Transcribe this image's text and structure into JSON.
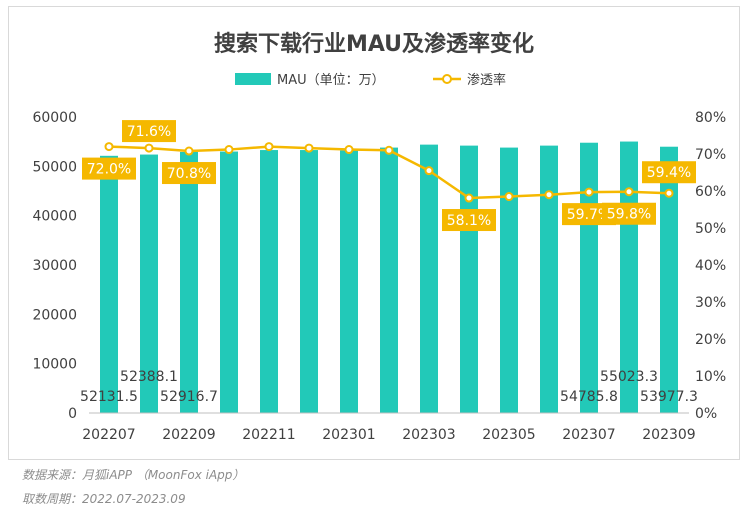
{
  "chart_data": {
    "type": "bar+line",
    "title": "搜索下载行业MAU及渗透率变化",
    "legend": {
      "placement": "top",
      "items": [
        {
          "label": "MAU（单位：万）",
          "color": "#22c9b8"
        },
        {
          "label": "渗透率",
          "color": "#f5b800"
        }
      ]
    },
    "categories": [
      "202207",
      "202208",
      "202209",
      "202210",
      "202211",
      "202212",
      "202301",
      "202302",
      "202303",
      "202304",
      "202305",
      "202306",
      "202307",
      "202308",
      "202309"
    ],
    "x_tick_labels": [
      "202207",
      "202209",
      "202211",
      "202301",
      "202303",
      "202305",
      "202307",
      "202309"
    ],
    "series": [
      {
        "name": "MAU（单位：万）",
        "type": "bar",
        "axis": "left",
        "color": "#22c9b8",
        "values": [
          52131.5,
          52388.1,
          52916.7,
          53000,
          53300,
          53300,
          53200,
          53800,
          54400,
          54200,
          53800,
          54200,
          54785.8,
          55023.3,
          53977.3
        ],
        "data_labels": [
          {
            "index": 0,
            "text": "52131.5"
          },
          {
            "index": 1,
            "text": "52388.1"
          },
          {
            "index": 2,
            "text": "52916.7"
          },
          {
            "index": 12,
            "text": "54785.8"
          },
          {
            "index": 13,
            "text": "55023.3"
          },
          {
            "index": 14,
            "text": "53977.3"
          }
        ]
      },
      {
        "name": "渗透率",
        "type": "line",
        "axis": "right",
        "color": "#f5b800",
        "values": [
          72.0,
          71.6,
          70.8,
          71.2,
          72.0,
          71.6,
          71.2,
          71.0,
          65.5,
          58.1,
          58.5,
          59.0,
          59.7,
          59.8,
          59.4
        ],
        "data_labels": [
          {
            "index": 0,
            "text": "72.0%"
          },
          {
            "index": 1,
            "text": "71.6%"
          },
          {
            "index": 2,
            "text": "70.8%"
          },
          {
            "index": 9,
            "text": "58.1%"
          },
          {
            "index": 12,
            "text": "59.7%"
          },
          {
            "index": 13,
            "text": "59.8%"
          },
          {
            "index": 14,
            "text": "59.4%"
          }
        ]
      }
    ],
    "y_left": {
      "min": 0,
      "max": 60000,
      "ticks": [
        0,
        10000,
        20000,
        30000,
        40000,
        50000,
        60000
      ]
    },
    "y_right": {
      "min": 0,
      "max": 80,
      "ticks": [
        "0%",
        "10%",
        "20%",
        "30%",
        "40%",
        "50%",
        "60%",
        "70%",
        "80%"
      ]
    },
    "grid": false
  },
  "footer": {
    "source": "数据来源：月狐iAPP （MoonFox iApp）",
    "period": "取数周期：2022.07-2023.09"
  }
}
